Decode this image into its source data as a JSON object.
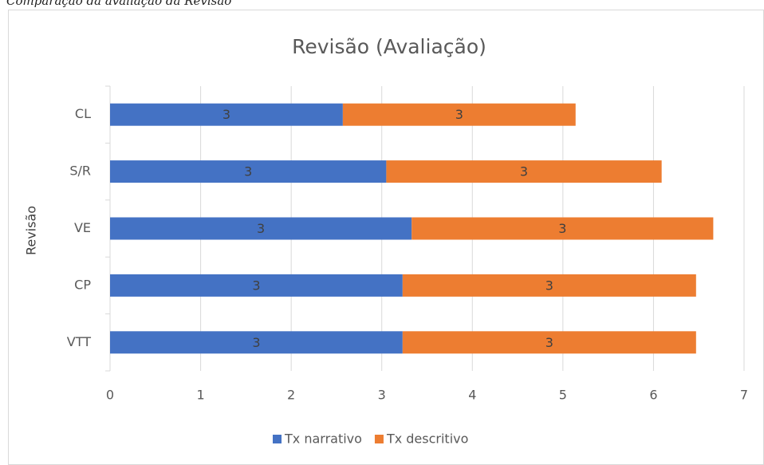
{
  "caption": "Comparação da avaliação da Revisão",
  "chart_data": {
    "type": "stacked_barh",
    "title": "Revisão (Avaliação)",
    "y_label": "Revisão",
    "categories": [
      "CL",
      "S/R",
      "VE",
      "CP",
      "VTT"
    ],
    "series": [
      {
        "name": "Tx narrativo",
        "color": "#4472c4",
        "values": [
          2.57,
          3.05,
          3.33,
          3.23,
          3.23
        ],
        "value_labels": [
          "3",
          "3",
          "3",
          "3",
          "3"
        ]
      },
      {
        "name": "Tx descritivo",
        "color": "#ed7d31",
        "values": [
          2.57,
          3.04,
          3.33,
          3.24,
          3.24
        ],
        "value_labels": [
          "3",
          "3",
          "3",
          "3",
          "3"
        ]
      }
    ],
    "xlim": [
      0,
      7
    ],
    "xticks": [
      0,
      1,
      2,
      3,
      4,
      5,
      6,
      7
    ],
    "grid": true,
    "legend": "bottom"
  }
}
